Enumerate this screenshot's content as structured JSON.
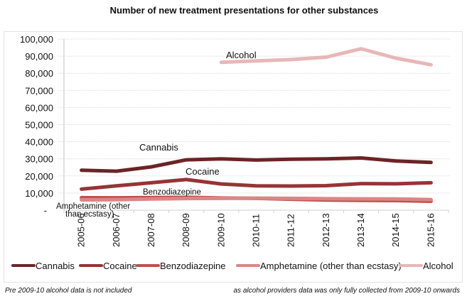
{
  "chart_data": {
    "type": "line",
    "title": "Number of new treatment presentations for other substances",
    "xlabel": "",
    "ylabel": "",
    "ylim": [
      0,
      100000
    ],
    "yticks": [
      0,
      10000,
      20000,
      30000,
      40000,
      50000,
      60000,
      70000,
      80000,
      90000,
      100000
    ],
    "ytick_labels": [
      "-",
      "10,000",
      "20,000",
      "30,000",
      "40,000",
      "50,000",
      "60,000",
      "70,000",
      "80,000",
      "90,000",
      "100,000"
    ],
    "grid": true,
    "legend_position": "bottom",
    "categories": [
      "2005-06",
      "2006-07",
      "2007-08",
      "2008-09",
      "2009-10",
      "2010-11",
      "2011-12",
      "2012-13",
      "2013-14",
      "2014-15",
      "2015-16"
    ],
    "series": [
      {
        "name": "Cannabis",
        "color": "#6b2426",
        "values": [
          23300,
          22800,
          25300,
          29400,
          30000,
          29300,
          29800,
          30000,
          30500,
          28700,
          27900
        ]
      },
      {
        "name": "Cocaine",
        "color": "#963436",
        "values": [
          12300,
          14200,
          16000,
          17900,
          15300,
          14200,
          14100,
          14300,
          15500,
          15400,
          16000
        ]
      },
      {
        "name": "Benzodiazepine",
        "color": "#c0504d",
        "values": [
          7300,
          7200,
          7400,
          7500,
          7100,
          6900,
          6400,
          5900,
          5700,
          5600,
          5200
        ]
      },
      {
        "name": "Amphetamine (other than ecstasy)",
        "color": "#d98785",
        "values": [
          6000,
          6100,
          6500,
          6800,
          6900,
          7000,
          6900,
          6700,
          6600,
          6500,
          6200
        ]
      },
      {
        "name": "Alcohol",
        "color": "#e8b7b8",
        "values": [
          null,
          null,
          null,
          null,
          86400,
          87200,
          88000,
          89400,
          94300,
          88800,
          85000
        ]
      }
    ],
    "annotations": [
      {
        "text": "Alcohol",
        "series": "Alcohol"
      },
      {
        "text": "Cannabis",
        "series": "Cannabis"
      },
      {
        "text": "Cocaine",
        "series": "Cocaine"
      },
      {
        "text": "Benzodiazepine",
        "series": "Benzodiazepine"
      },
      {
        "text": "Amphetamine (other",
        "series": "Amphetamine (other than ecstasy)"
      },
      {
        "text": "than ecstasy)",
        "series": "Amphetamine (other than ecstasy)"
      }
    ]
  },
  "footnotes": {
    "left": "Pre 2009-10 alcohol data is not included",
    "right": "as alcohol providers data was only fully collected from 2009-10 onwards"
  }
}
